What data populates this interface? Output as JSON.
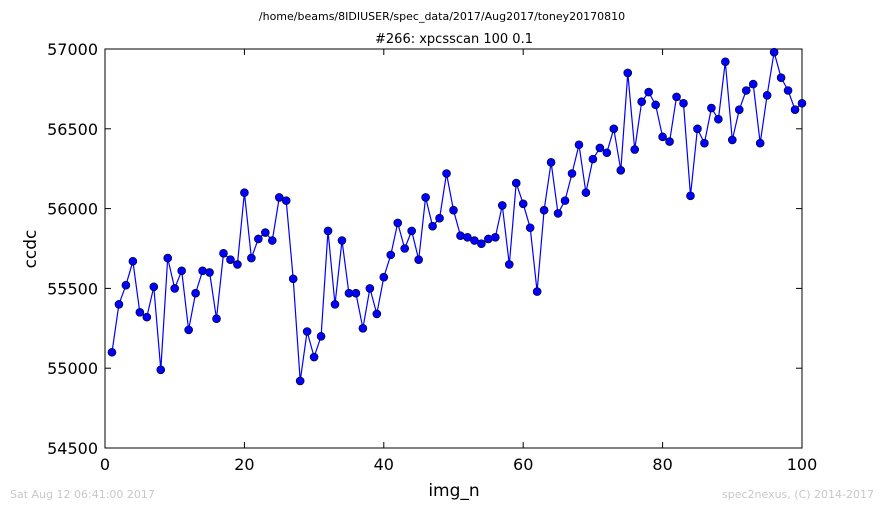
{
  "figure": {
    "suptitle": "/home/beams/8IDIUSER/spec_data/2017/Aug2017/toney20170810",
    "footer_left": "Sat Aug 12 06:41:00 2017",
    "footer_right": "spec2nexus, (C) 2014-2017"
  },
  "chart_data": {
    "type": "line",
    "title": "#266: xpcsscan 100 0.1",
    "xlabel": "img_n",
    "ylabel": "ccdc",
    "xlim": [
      0,
      100
    ],
    "ylim": [
      54500,
      57000
    ],
    "xticks": [
      0,
      20,
      40,
      60,
      80,
      100
    ],
    "yticks": [
      54500,
      55000,
      55500,
      56000,
      56500,
      57000
    ],
    "grid": false,
    "legend": false,
    "series": [
      {
        "color": "#0000ff",
        "marker": "circle",
        "x": [
          1,
          2,
          3,
          4,
          5,
          6,
          7,
          8,
          9,
          10,
          11,
          12,
          13,
          14,
          15,
          16,
          17,
          18,
          19,
          20,
          21,
          22,
          23,
          24,
          25,
          26,
          27,
          28,
          29,
          30,
          31,
          32,
          33,
          34,
          35,
          36,
          37,
          38,
          39,
          40,
          41,
          42,
          43,
          44,
          45,
          46,
          47,
          48,
          49,
          50,
          51,
          52,
          53,
          54,
          55,
          56,
          57,
          58,
          59,
          60,
          61,
          62,
          63,
          64,
          65,
          66,
          67,
          68,
          69,
          70,
          71,
          72,
          73,
          74,
          75,
          76,
          77,
          78,
          79,
          80,
          81,
          82,
          83,
          84,
          85,
          86,
          87,
          88,
          89,
          90,
          91,
          92,
          93,
          94,
          95,
          96,
          97,
          98,
          99,
          100
        ],
        "y": [
          55100,
          55400,
          55520,
          55670,
          55350,
          55320,
          55510,
          54990,
          55690,
          55500,
          55610,
          55240,
          55470,
          55610,
          55600,
          55310,
          55720,
          55680,
          55650,
          56100,
          55690,
          55810,
          55850,
          55800,
          56070,
          56050,
          55560,
          54920,
          55230,
          55070,
          55200,
          55860,
          55400,
          55800,
          55470,
          55470,
          55250,
          55500,
          55340,
          55570,
          55710,
          55910,
          55750,
          55860,
          55680,
          56070,
          55890,
          55940,
          56220,
          55990,
          55830,
          55820,
          55800,
          55780,
          55810,
          55820,
          56020,
          55650,
          56160,
          56030,
          55880,
          55480,
          55990,
          56290,
          55970,
          56050,
          56220,
          56400,
          56100,
          56310,
          56380,
          56350,
          56500,
          56240,
          56850,
          56370,
          56670,
          56730,
          56650,
          56450,
          56420,
          56700,
          56660,
          56080,
          56500,
          56410,
          56630,
          56560,
          56920,
          56430,
          56620,
          56740,
          56780,
          56410,
          56710,
          56980,
          56820,
          56740,
          56620,
          56660
        ]
      }
    ]
  }
}
